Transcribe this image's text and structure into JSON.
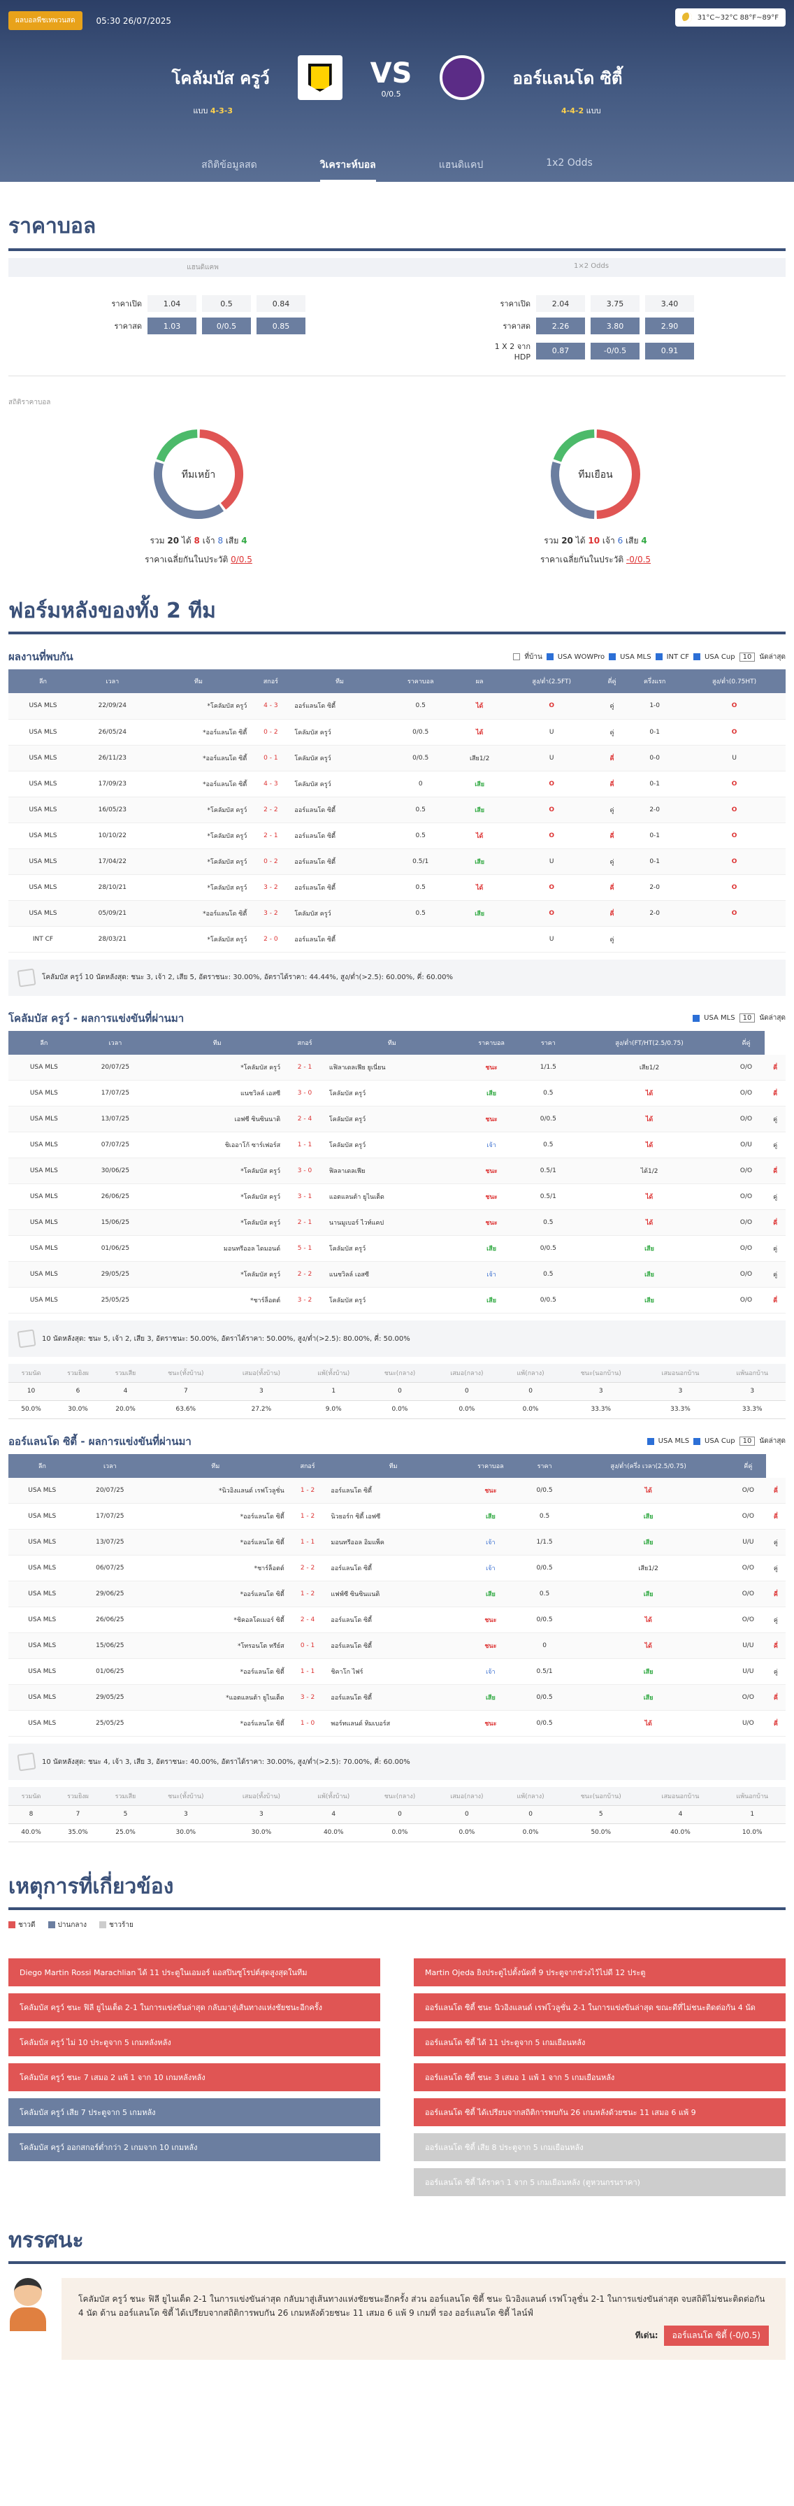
{
  "header": {
    "live": "ผลบอลพีชเทพวนสด",
    "datetime": "05:30 26/07/2025",
    "weather": "31°C~32°C 88°F~89°F"
  },
  "match": {
    "home": "โคลัมบัส ครูว์",
    "away": "ออร์แลนโด ซิตี้",
    "vs": "VS",
    "handicap": "0/0.5",
    "home_form_label": "แบบ",
    "home_form": "4-3-3",
    "away_form": "4-4-2",
    "away_form_label": "แบบ"
  },
  "tabs": [
    "สถิติข้อมูลสด",
    "วิเคราะห์บอล",
    "แฮนดิแคป",
    "1x2 Odds"
  ],
  "odds": {
    "title": "ราคาบอล",
    "hdp_header": "แฮนดิแคพ",
    "x12_header": "1×2 Odds",
    "rows_left": [
      {
        "label": "ราคาเปิด",
        "v": [
          "1.04",
          "0.5",
          "0.84"
        ]
      },
      {
        "label": "ราคาสด",
        "v": [
          "1.03",
          "0/0.5",
          "0.85"
        ]
      }
    ],
    "rows_right": [
      {
        "label": "ราคาเปิด",
        "v": [
          "2.04",
          "3.75",
          "3.40"
        ]
      },
      {
        "label": "ราคาสด",
        "v": [
          "2.26",
          "3.80",
          "2.90"
        ]
      },
      {
        "label": "1 X 2 จาก HDP",
        "v": [
          "0.87",
          "-0/0.5",
          "0.91"
        ]
      }
    ]
  },
  "stats": {
    "label": "สถิติราคาบอล",
    "home": {
      "name": "ทีมเหย้า",
      "total_label": "รวม",
      "total": "20",
      "win_label": "ได้",
      "win": "8",
      "draw_label": "เจ้า",
      "draw": "8",
      "lose_label": "เสีย",
      "lose": "4",
      "avg_label": "ราคาเฉลี่ยกันในประวัติ",
      "avg": "0/0.5",
      "win_n": 8,
      "draw_n": 8,
      "lose_n": 4
    },
    "away": {
      "name": "ทีมเยือน",
      "total_label": "รวม",
      "total": "20",
      "win_label": "ได้",
      "win": "10",
      "draw_label": "เจ้า",
      "draw": "6",
      "lose_label": "เสีย",
      "lose": "4",
      "avg_label": "ราคาเฉลี่ยกันในประวัติ",
      "avg": "-0/0.5",
      "win_n": 10,
      "draw_n": 6,
      "lose_n": 4
    }
  },
  "form_title": "ฟอร์มหลังของทั้ง 2 ทีม",
  "h2h": {
    "title": "ผลงานที่พบกัน",
    "filters": [
      "ที่บ้าน",
      "USA WOWPro",
      "USA MLS",
      "INT CF",
      "USA Cup"
    ],
    "count": "10",
    "count_label": "นัดล่าสุด",
    "headers": [
      "ลีก",
      "เวลา",
      "ทีม",
      "สกอร์",
      "ทีม",
      "ราคาบอล",
      "ผล",
      "สูง/ต่ำ(2.5FT)",
      "คี่คู่",
      "ครึ่งแรก",
      "สูง/ต่ำ(0.75HT)"
    ],
    "rows": [
      [
        "USA MLS",
        "22/09/24",
        "*โคลัมบัส ครูว์",
        "4 - 3",
        "ออร์แลนโด ซิตี้",
        "0.5",
        "ได้",
        "O",
        "คู่",
        "1-0",
        "O"
      ],
      [
        "USA MLS",
        "26/05/24",
        "*ออร์แลนโด ซิตี้",
        "0 - 2",
        "โคลัมบัส ครูว์",
        "0/0.5",
        "ได้",
        "U",
        "คู่",
        "0-1",
        "O"
      ],
      [
        "USA MLS",
        "26/11/23",
        "*ออร์แลนโด ซิตี้",
        "0 - 1",
        "โคลัมบัส ครูว์",
        "0/0.5",
        "เสีย1/2",
        "U",
        "คี่",
        "0-0",
        "U"
      ],
      [
        "USA MLS",
        "17/09/23",
        "*ออร์แลนโด ซิตี้",
        "4 - 3",
        "โคลัมบัส ครูว์",
        "0",
        "เสีย",
        "O",
        "คี่",
        "0-1",
        "O"
      ],
      [
        "USA MLS",
        "16/05/23",
        "*โคลัมบัส ครูว์",
        "2 - 2",
        "ออร์แลนโด ซิตี้",
        "0.5",
        "เสีย",
        "O",
        "คู่",
        "2-0",
        "O"
      ],
      [
        "USA MLS",
        "10/10/22",
        "*โคลัมบัส ครูว์",
        "2 - 1",
        "ออร์แลนโด ซิตี้",
        "0.5",
        "ได้",
        "O",
        "คี่",
        "0-1",
        "O"
      ],
      [
        "USA MLS",
        "17/04/22",
        "*โคลัมบัส ครูว์",
        "0 - 2",
        "ออร์แลนโด ซิตี้",
        "0.5/1",
        "เสีย",
        "U",
        "คู่",
        "0-1",
        "O"
      ],
      [
        "USA MLS",
        "28/10/21",
        "*โคลัมบัส ครูว์",
        "3 - 2",
        "ออร์แลนโด ซิตี้",
        "0.5",
        "ได้",
        "O",
        "คี่",
        "2-0",
        "O"
      ],
      [
        "USA MLS",
        "05/09/21",
        "*ออร์แลนโด ซิตี้",
        "3 - 2",
        "โคลัมบัส ครูว์",
        "0.5",
        "เสีย",
        "O",
        "คี่",
        "2-0",
        "O"
      ],
      [
        "INT CF",
        "28/03/21",
        "*โคลัมบัส ครูว์",
        "2 - 0",
        "ออร์แลนโด ซิตี้",
        "",
        "",
        "U",
        "คู่",
        "",
        ""
      ]
    ],
    "summary": "โคลัมบัส ครูว์ 10 นัดหลังสุด: ชนะ 3, เจ้า 2, เสีย 5, อัตราชนะ: 30.00%, อัตราได้ราคา: 44.44%, สูง/ต่ำ(>2.5): 60.00%, คี่: 60.00%"
  },
  "home_recent": {
    "title": "โคลัมบัส ครูว์ - ผลการแข่งขันที่ผ่านมา",
    "filters": [
      "USA MLS"
    ],
    "count": "10",
    "count_label": "นัดล่าสุด",
    "headers": [
      "ลีก",
      "เวลา",
      "ทีม",
      "สกอร์",
      "ทีม",
      "ราคาบอล",
      "ราคา",
      "สูง/ต่ำ(FT/HT(2.5/0.75)",
      "คี่คู่"
    ],
    "rows": [
      [
        "USA MLS",
        "20/07/25",
        "*โคลัมบัส ครูว์",
        "2 - 1",
        "แฟิลาเดลเฟีย ยูเนี่ยน",
        "ชนะ",
        "1/1.5",
        "เสีย1/2",
        "O/O",
        "คี่"
      ],
      [
        "USA MLS",
        "17/07/25",
        "แนชวิลล์ เอสซี",
        "3 - 0",
        "โคลัมบัส ครูว์",
        "เสีย",
        "0.5",
        "ได้",
        "O/O",
        "คี่"
      ],
      [
        "USA MLS",
        "13/07/25",
        "เอฟซี ซินซินนาติ",
        "2 - 4",
        "โคลัมบัส ครูว์",
        "ชนะ",
        "0/0.5",
        "ได้",
        "O/O",
        "คู่"
      ],
      [
        "USA MLS",
        "07/07/25",
        "ชิเออาโก้ ซาร์เฟอร์ส",
        "1 - 1",
        "โคลัมบัส ครูว์",
        "เจ้า",
        "0.5",
        "ได้",
        "O/U",
        "คู่"
      ],
      [
        "USA MLS",
        "30/06/25",
        "*โคลัมบัส ครูว์",
        "3 - 0",
        "ฟิลลาเดลเฟีย",
        "ชนะ",
        "0.5/1",
        "ได้1/2",
        "O/O",
        "คี่"
      ],
      [
        "USA MLS",
        "26/06/25",
        "*โคลัมบัส ครูว์",
        "3 - 1",
        "แอตแลนต้า ยูไนเต็ด",
        "ชนะ",
        "0.5/1",
        "ได้",
        "O/O",
        "คู่"
      ],
      [
        "USA MLS",
        "15/06/25",
        "*โคลัมบัส ครูว์",
        "2 - 1",
        "นานมูเบอร์ ไวท์แคป",
        "ชนะ",
        "0.5",
        "ได้",
        "O/O",
        "คี่"
      ],
      [
        "USA MLS",
        "01/06/25",
        "มอนทรีออล ไดมอนด์",
        "5 - 1",
        "โคลัมบัส ครูว์",
        "เสีย",
        "0/0.5",
        "เสีย",
        "O/O",
        "คู่"
      ],
      [
        "USA MLS",
        "29/05/25",
        "*โคลัมบัส ครูว์",
        "2 - 2",
        "แนชวิลล์ เอสซี",
        "เจ้า",
        "0.5",
        "เสีย",
        "O/O",
        "คู่"
      ],
      [
        "USA MLS",
        "25/05/25",
        "*ชาร์ล็อตต์",
        "3 - 2",
        "โคลัมบัส ครูว์",
        "เสีย",
        "0/0.5",
        "เสีย",
        "O/O",
        "คี่"
      ]
    ],
    "summary": "10 นัดหลังสุด: ชนะ 5, เจ้า 2, เสีย 3, อัตราชนะ: 50.00%, อัตราได้ราคา: 50.00%, สูง/ต่ำ(>2.5): 80.00%, คี่: 50.00%",
    "stat_head": [
      "รวมนัด",
      "รวมยิงผ",
      "รวมเสีย",
      "ชนะ(ทั้งบ้าน)",
      "เสมอ(ทั้งบ้าน)",
      "แพ้(ทั้งบ้าน)",
      "ชนะ(กลาง)",
      "เสมอ(กลาง)",
      "แพ้(กลาง)",
      "ชนะ(นอกบ้าน)",
      "เสมอนอกบ้าน",
      "แพ้นอกบ้าน"
    ],
    "stat_row1": [
      "10",
      "6",
      "4",
      "7",
      "3",
      "1",
      "0",
      "0",
      "0",
      "3",
      "3",
      "3"
    ],
    "stat_row2": [
      "50.0%",
      "30.0%",
      "20.0%",
      "63.6%",
      "27.2%",
      "9.0%",
      "0.0%",
      "0.0%",
      "0.0%",
      "33.3%",
      "33.3%",
      "33.3%"
    ]
  },
  "away_recent": {
    "title": "ออร์แลนโด ซิตี้ - ผลการแข่งขันที่ผ่านมา",
    "filters": [
      "USA MLS",
      "USA Cup"
    ],
    "count": "10",
    "count_label": "นัดล่าสุด",
    "headers": [
      "ลีก",
      "เวลา",
      "ทีม",
      "สกอร์",
      "ทีม",
      "ราคาบอล",
      "ราคา",
      "สูง/ต่ำ(ครึ่ง เวลา(2.5/0.75)",
      "คี่คู่"
    ],
    "rows": [
      [
        "USA MLS",
        "20/07/25",
        "*นิวอิงแลนด์ เรฟโวลูชั่น",
        "1 - 2",
        "ออร์แลนโด ซิตี้",
        "ชนะ",
        "0/0.5",
        "ได้",
        "O/O",
        "คี่"
      ],
      [
        "USA MLS",
        "17/07/25",
        "*ออร์แลนโด ซิตี้",
        "1 - 2",
        "นิวยอร์ก ซิตี้ เอฟซี",
        "เสีย",
        "0.5",
        "เสีย",
        "O/O",
        "คี่"
      ],
      [
        "USA MLS",
        "13/07/25",
        "*ออร์แลนโด ซิตี้",
        "1 - 1",
        "มอนทรีออล อิมแพ็ค",
        "เจ้า",
        "1/1.5",
        "เสีย",
        "U/U",
        "คู่"
      ],
      [
        "USA MLS",
        "06/07/25",
        "*ชาร์ล็อตต์",
        "2 - 2",
        "ออร์แลนโด ซิตี้",
        "เจ้า",
        "0/0.5",
        "เสีย1/2",
        "O/O",
        "คู่"
      ],
      [
        "USA MLS",
        "29/06/25",
        "*ออร์แลนโด ซิตี้",
        "1 - 2",
        "แฟฟ์ซี ซินซินแนติ",
        "เสีย",
        "0.5",
        "เสีย",
        "O/O",
        "คี่"
      ],
      [
        "USA MLS",
        "26/06/25",
        "*ชิคอลโดเมอร์ ซิตี้",
        "2 - 4",
        "ออร์แลนโด ซิตี้",
        "ชนะ",
        "0/0.5",
        "ได้",
        "O/O",
        "คู่"
      ],
      [
        "USA MLS",
        "15/06/25",
        "*โทรอนโต ทรีย์ส",
        "0 - 1",
        "ออร์แลนโด ซิตี้",
        "ชนะ",
        "0",
        "ได้",
        "U/U",
        "คี่"
      ],
      [
        "USA MLS",
        "01/06/25",
        "*ออร์แลนโด ซิตี้",
        "1 - 1",
        "ชิคาโก ไฟร์",
        "เจ้า",
        "0.5/1",
        "เสีย",
        "U/U",
        "คู่"
      ],
      [
        "USA MLS",
        "29/05/25",
        "*แอตแลนต้า ยูไนเต็ด",
        "3 - 2",
        "ออร์แลนโด ซิตี้",
        "เสีย",
        "0/0.5",
        "เสีย",
        "O/O",
        "คี่"
      ],
      [
        "USA MLS",
        "25/05/25",
        "*ออร์แลนโด ซิตี้",
        "1 - 0",
        "พอร์ทแลนด์ ทิมเบอร์ส",
        "ชนะ",
        "0/0.5",
        "ได้",
        "U/O",
        "คี่"
      ]
    ],
    "summary": "10 นัดหลังสุด: ชนะ 4, เจ้า 3, เสีย 3, อัตราชนะ: 40.00%, อัตราได้ราคา: 30.00%, สูง/ต่ำ(>2.5): 70.00%, คี่: 60.00%",
    "stat_head": [
      "รวมนัด",
      "รวมยิงผ",
      "รวมเสีย",
      "ชนะ(ทั้งบ้าน)",
      "เสมอ(ทั้งบ้าน)",
      "แพ้(ทั้งบ้าน)",
      "ชนะ(กลาง)",
      "เสมอ(กลาง)",
      "แพ้(กลาง)",
      "ชนะ(นอกบ้าน)",
      "เสมอนอกบ้าน",
      "แพ้นอกบ้าน"
    ],
    "stat_row1": [
      "8",
      "7",
      "5",
      "3",
      "3",
      "4",
      "0",
      "0",
      "0",
      "5",
      "4",
      "1"
    ],
    "stat_row2": [
      "40.0%",
      "35.0%",
      "25.0%",
      "30.0%",
      "30.0%",
      "40.0%",
      "0.0%",
      "0.0%",
      "0.0%",
      "50.0%",
      "40.0%",
      "10.0%"
    ]
  },
  "events": {
    "title": "เหตุการที่เกี่ยวข้อง",
    "legend": [
      "ชาวดี",
      "ปานกลาง",
      "ชาวร้าย"
    ],
    "left": [
      {
        "c": "red",
        "t": "Diego Martin Rossi Marachlian ได้ 11 ประตูในเอมอร์ แอสปินซูโรปต์สุดสูงสุดในทีม"
      },
      {
        "c": "red",
        "t": "โคลัมบัส ครูว์ ชนะ ฟิลี ยูไนเต็ด 2-1 ในการแข่งขันล่าสุด กลับมาสู่เส้นทางแห่งชัยชนะอีกครั้ง"
      },
      {
        "c": "red",
        "t": "โคลัมบัส ครูว์ ไม่ 10 ประตูจาก 5 เกมหลังหลัง"
      },
      {
        "c": "red",
        "t": "โคลัมบัส ครูว์ ชนะ 7 เสมอ 2 แพ้ 1 จาก 10 เกมหลังหลัง"
      },
      {
        "c": "blue",
        "t": "โคลัมบัส ครูว์ เสีย 7 ประตูจาก 5 เกมหลัง"
      },
      {
        "c": "blue",
        "t": "โคลัมบัส ครูว์ ออกสกอร์ต่ำกว่า 2 เกมจาก 10 เกมหลัง"
      }
    ],
    "right": [
      {
        "c": "red",
        "t": "Martin Ojeda ยิงประตูไปตั้งนัดที่ 9 ประตูจากช่วงไว้ไปดี 12 ประตู"
      },
      {
        "c": "red",
        "t": "ออร์แลนโด ซิตี้ ชนะ นิวอิงแลนด์ เรฟโวลูชั่น 2-1 ในการแข่งขันล่าสุด ขณะดีที่ไม่ชนะติดต่อกัน 4 นัด"
      },
      {
        "c": "red",
        "t": "ออร์แลนโด ซิตี้ ได้ 11 ประตูจาก 5 เกมเยือนหลัง"
      },
      {
        "c": "red",
        "t": "ออร์แลนโด ซิตี้ ชนะ 3 เสมอ 1 แพ้ 1 จาก 5 เกมเยือนหลัง"
      },
      {
        "c": "red",
        "t": "ออร์แลนโด ซิตี้ ได้เปรียบจากสถิติการพบกัน 26 เกมหลังด้วยชนะ 11 เสมอ 6 แพ้ 9"
      },
      {
        "c": "grey",
        "t": "ออร์แลนโด ซิตี้ เสีย 8 ประตูจาก 5 เกมเยือนหลัง"
      },
      {
        "c": "grey",
        "t": "ออร์แลนโด ซิตี้ ได้ราคา 1 จาก 5 เกมเยือนหลัง (ตูหวนกรนราคา)"
      }
    ]
  },
  "opinion": {
    "title": "ทรรศนะ",
    "text": "โคลัมบัส ครูว์ ชนะ ฟิลี ยูไนเต็ด 2-1 ในการแข่งขันล่าสุด กลับมาสู่เส้นทางแห่งชัยชนะอีกครั้ง ส่วน ออร์แลนโด ซิตี้ ชนะ นิวอิงแลนด์ เรฟโวลูชั่น 2-1 ในการแข่งขันล่าสุด จบสถิติไม่ชนะติดต่อกัน 4 นัด ด้าน ออร์แลนโด ซิตี้ ได้เปรียบจากสถิติการพบกัน 26 เกมหลังด้วยชนะ 11 เสมอ 6 แพ้ 9 เกมที่ รอง ออร์แลนโด ซิตี้ ไลน์ฟ์",
    "pick_label": "ทีเด่น:",
    "pick": "ออร์แลนโด ซิตี้ (-0/0.5)"
  },
  "colors": {
    "win": "#e05554",
    "draw": "#6b7ea0",
    "lose": "#4cba6a"
  }
}
